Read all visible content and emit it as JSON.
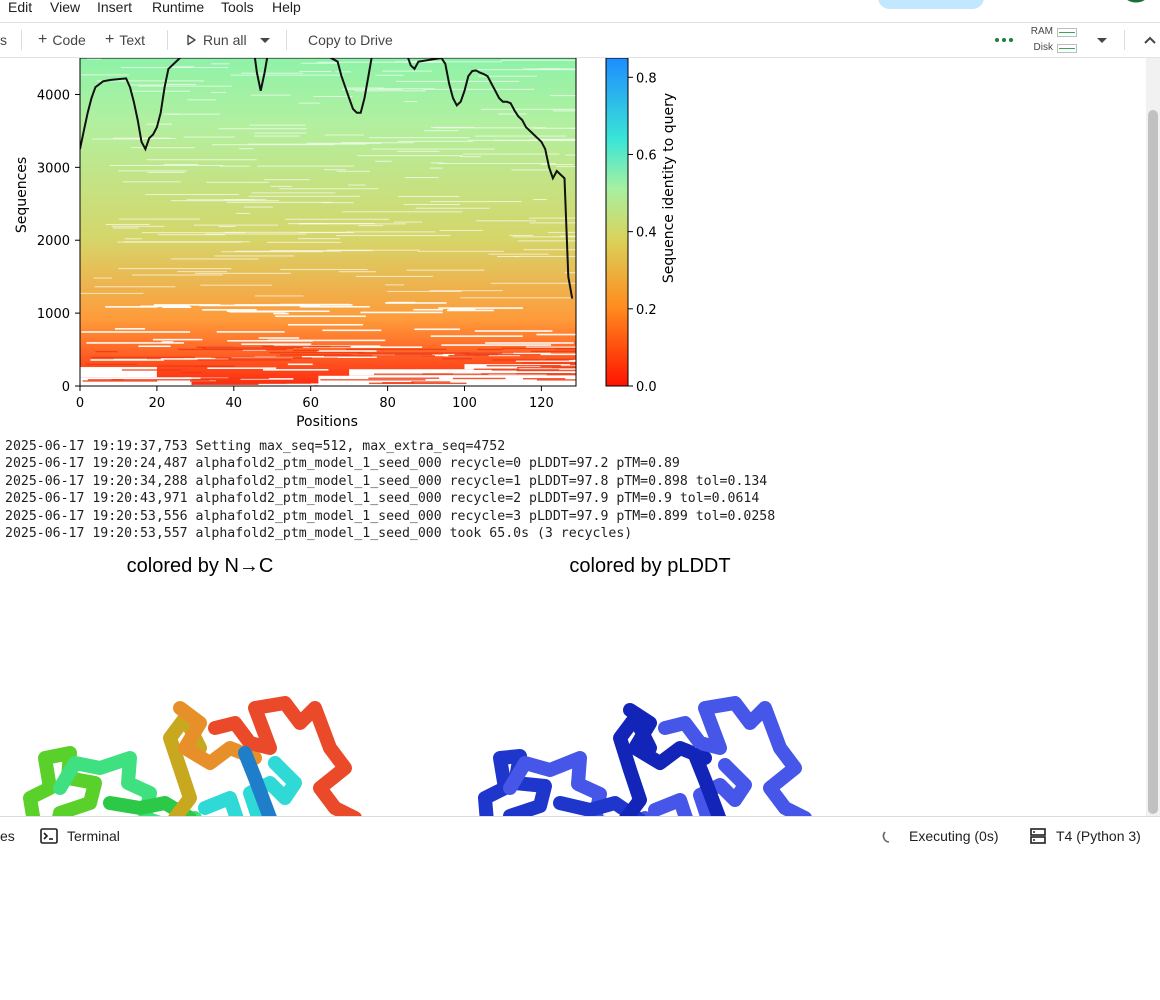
{
  "menu": [
    "Edit",
    "View",
    "Insert",
    "Runtime",
    "Tools",
    "Help"
  ],
  "toolbar": {
    "partial_left": "s",
    "code_label": "Code",
    "text_label": "Text",
    "run_all_label": "Run all",
    "copy_to_drive_label": "Copy to Drive",
    "ram_label": "RAM",
    "disk_label": "Disk"
  },
  "chart_data": {
    "type": "heatmap",
    "xlabel": "Positions",
    "ylabel": "Sequences",
    "xlim": [
      0,
      129
    ],
    "ylim": [
      0,
      4500
    ],
    "xticks": [
      0,
      20,
      40,
      60,
      80,
      100,
      120
    ],
    "yticks": [
      0,
      1000,
      2000,
      3000,
      4000
    ],
    "colorbar": {
      "label": "Sequence identity to query",
      "range": [
        0.0,
        0.85
      ],
      "ticks": [
        0.0,
        0.2,
        0.4,
        0.6,
        0.8
      ],
      "colors": [
        "#ff1400",
        "#ff8c1e",
        "#d9d35c",
        "#a8f0a0",
        "#3ae6d6",
        "#1e8cff"
      ]
    },
    "coverage_line": {
      "x": [
        0,
        1,
        2,
        3,
        4,
        6,
        8,
        12,
        13,
        14,
        15,
        16,
        17,
        18,
        19,
        20,
        21,
        22,
        23,
        25,
        28,
        30,
        40,
        44,
        45,
        46,
        47,
        48,
        49,
        50,
        55,
        60,
        67,
        68,
        69,
        70,
        71,
        72,
        73,
        74,
        75,
        76,
        85,
        86,
        87,
        88,
        94,
        95,
        96,
        97,
        98,
        99,
        100,
        101,
        102,
        103,
        104,
        105,
        106,
        107,
        108,
        109,
        110,
        111,
        112,
        113,
        114,
        115,
        116,
        117,
        118,
        119,
        120,
        121,
        122,
        123,
        124,
        125,
        126,
        127,
        128
      ],
      "y": [
        3250,
        3500,
        3750,
        3950,
        4100,
        4180,
        4200,
        4220,
        4100,
        3900,
        3650,
        3350,
        3250,
        3400,
        3450,
        3550,
        3750,
        4100,
        4350,
        4450,
        4600,
        4600,
        4600,
        4550,
        4700,
        4300,
        4050,
        4300,
        4600,
        4650,
        4650,
        4650,
        4450,
        4250,
        4100,
        3950,
        3800,
        3750,
        3750,
        3950,
        4250,
        4550,
        4550,
        4400,
        4350,
        4450,
        4500,
        4420,
        4150,
        3950,
        3850,
        3900,
        4050,
        4250,
        4320,
        4330,
        4300,
        4280,
        4250,
        4150,
        4050,
        3950,
        3900,
        3900,
        3880,
        3780,
        3700,
        3650,
        3550,
        3500,
        3450,
        3400,
        3350,
        3250,
        3000,
        2850,
        2950,
        2900,
        2850,
        1500,
        1200
      ]
    }
  },
  "log_lines": [
    "2025-06-17 19:19:37,753 Setting max_seq=512, max_extra_seq=4752",
    "2025-06-17 19:20:24,487 alphafold2_ptm_model_1_seed_000 recycle=0 pLDDT=97.2 pTM=0.89",
    "2025-06-17 19:20:34,288 alphafold2_ptm_model_1_seed_000 recycle=1 pLDDT=97.8 pTM=0.898 tol=0.134",
    "2025-06-17 19:20:43,971 alphafold2_ptm_model_1_seed_000 recycle=2 pLDDT=97.9 pTM=0.9 tol=0.0614",
    "2025-06-17 19:20:53,556 alphafold2_ptm_model_1_seed_000 recycle=3 pLDDT=97.9 pTM=0.899 tol=0.0258",
    "2025-06-17 19:20:53,557 alphafold2_ptm_model_1_seed_000 took 65.0s (3 recycles)"
  ],
  "structures": {
    "left_title": "colored by N→C",
    "right_title": "colored by pLDDT",
    "n_to_c_colors": [
      "#2dd15a",
      "#f5dc5a",
      "#e59a1e",
      "#27e1dc",
      "#1570c4",
      "#ea4a2a"
    ],
    "plddt_colors": [
      "#1f36cc",
      "#4656e8",
      "#1325b8"
    ]
  },
  "statusbar": {
    "partial_left": "es",
    "terminal_label": "Terminal",
    "executing_label": "Executing (0s)",
    "runtime_label": "T4 (Python 3)"
  }
}
